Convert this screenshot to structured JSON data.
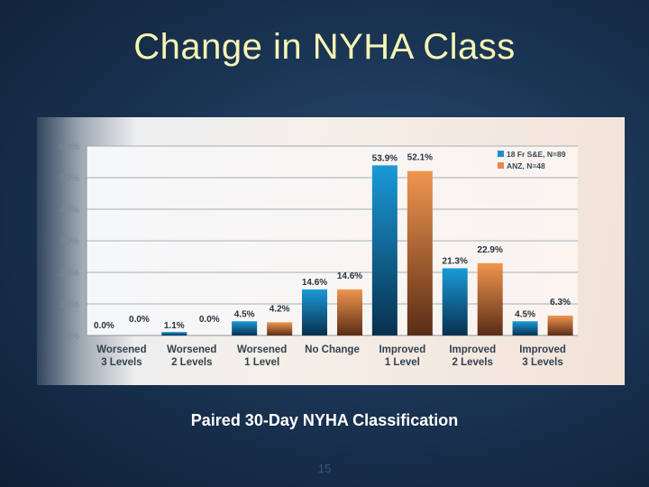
{
  "slide": {
    "title": "Change in NYHA Class",
    "caption": "Paired 30-Day NYHA Classification",
    "page_number": "15"
  },
  "chart_data": {
    "type": "bar",
    "categories": [
      [
        "Worsened",
        "3 Levels"
      ],
      [
        "Worsened",
        "2 Levels"
      ],
      [
        "Worsened",
        "1 Level"
      ],
      [
        "No Change"
      ],
      [
        "Improved",
        "1 Level"
      ],
      [
        "Improved",
        "2 Levels"
      ],
      [
        "Improved",
        "3 Levels"
      ]
    ],
    "series": [
      {
        "name": "18 Fr S&E, N=89",
        "values": [
          0.0,
          1.1,
          4.5,
          14.6,
          53.9,
          21.3,
          4.5
        ],
        "labels": [
          "0.0%",
          "1.1%",
          "4.5%",
          "14.6%",
          "53.9%",
          "21.3%",
          "4.5%"
        ],
        "color": "#1a8fd0"
      },
      {
        "name": "ANZ, N=48",
        "values": [
          0.0,
          0.0,
          4.2,
          14.6,
          52.1,
          22.9,
          6.3
        ],
        "labels": [
          "0.0%",
          "0.0%",
          "4.2%",
          "14.6%",
          "52.1%",
          "22.9%",
          "6.3%"
        ],
        "color": "#e8884a"
      }
    ],
    "y_ticks": [
      "0%",
      "10%",
      "20%",
      "30%",
      "40%",
      "50%",
      "60%"
    ],
    "ylim": [
      0,
      60
    ],
    "grid": true,
    "legend_position": "top-right"
  }
}
